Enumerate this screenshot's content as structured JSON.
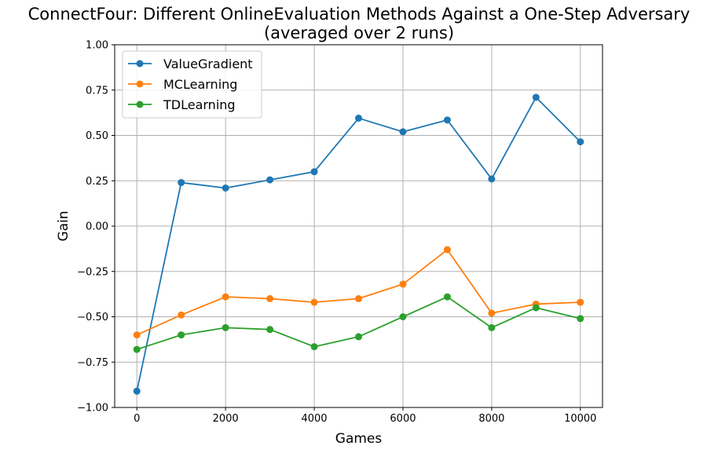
{
  "chart_data": {
    "type": "line",
    "title_line1": "ConnectFour: Different OnlineEvaluation Methods Against a One-Step Adversary",
    "title_line2": "(averaged over 2 runs)",
    "xlabel": "Games",
    "ylabel": "Gain",
    "x": [
      0,
      1000,
      2000,
      3000,
      4000,
      5000,
      6000,
      7000,
      8000,
      9000,
      10000
    ],
    "xlim": [
      -500,
      10500
    ],
    "ylim": [
      -1.0,
      1.0
    ],
    "xticks": [
      0,
      2000,
      4000,
      6000,
      8000,
      10000
    ],
    "xtick_labels": [
      "0",
      "2000",
      "4000",
      "6000",
      "8000",
      "10000"
    ],
    "yticks": [
      1.0,
      0.75,
      0.5,
      0.25,
      0.0,
      -0.25,
      -0.5,
      -0.75,
      -1.0
    ],
    "ytick_labels": [
      "1.00",
      "0.75",
      "0.50",
      "0.25",
      "0.00",
      "−0.25",
      "−0.50",
      "−0.75",
      "−1.00"
    ],
    "grid": true,
    "legend_position": "top-left",
    "series": [
      {
        "name": "ValueGradient",
        "color": "#1f77b4",
        "values": [
          -0.91,
          0.24,
          0.21,
          0.255,
          0.3,
          0.595,
          0.52,
          0.585,
          0.26,
          0.71,
          0.465
        ]
      },
      {
        "name": "MCLearning",
        "color": "#ff7f0e",
        "values": [
          -0.6,
          -0.49,
          -0.39,
          -0.4,
          -0.42,
          -0.4,
          -0.32,
          -0.13,
          -0.48,
          -0.43,
          -0.42
        ]
      },
      {
        "name": "TDLearning",
        "color": "#2ca02c",
        "values": [
          -0.68,
          -0.6,
          -0.56,
          -0.57,
          -0.665,
          -0.61,
          -0.5,
          -0.39,
          -0.56,
          -0.45,
          -0.51
        ]
      }
    ]
  }
}
